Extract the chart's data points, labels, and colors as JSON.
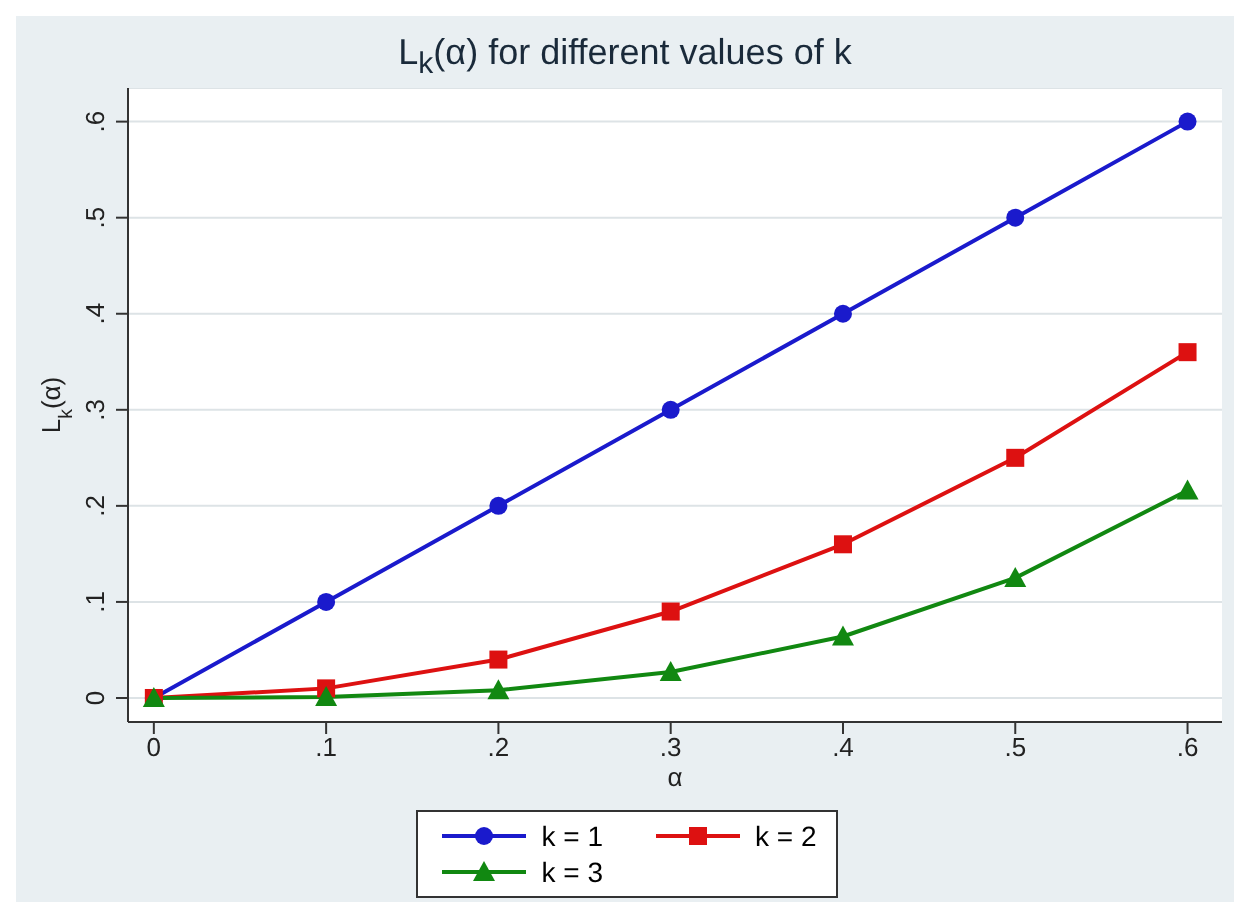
{
  "chart_data": {
    "type": "line",
    "title": "L$_{k}$(α) for different values of k",
    "xlabel": "α",
    "ylabel": "L$_{k}$(α)",
    "x": [
      0,
      0.1,
      0.2,
      0.3,
      0.4,
      0.5,
      0.6
    ],
    "series": [
      {
        "name": "k = 1",
        "color": "#1a1acc",
        "marker": "circle",
        "values": [
          0,
          0.1,
          0.2,
          0.3,
          0.4,
          0.5,
          0.6
        ]
      },
      {
        "name": "k = 2",
        "color": "#dd1111",
        "marker": "square",
        "values": [
          0,
          0.01,
          0.04,
          0.09,
          0.16,
          0.25,
          0.36
        ]
      },
      {
        "name": "k = 3",
        "color": "#118811",
        "marker": "triangle",
        "values": [
          0,
          0.001,
          0.008,
          0.027,
          0.064,
          0.125,
          0.216
        ]
      }
    ],
    "xlim": [
      -0.015,
      0.62
    ],
    "ylim": [
      -0.025,
      0.635
    ],
    "xticks": [
      0,
      {
        "value": 0.1,
        "label": ".1"
      },
      {
        "value": 0.2,
        "label": ".2"
      },
      {
        "value": 0.3,
        "label": ".3"
      },
      {
        "value": 0.4,
        "label": ".4"
      },
      {
        "value": 0.5,
        "label": ".5"
      },
      {
        "value": 0.6,
        "label": ".6"
      }
    ],
    "yticks": [
      0,
      {
        "value": 0.1,
        "label": ".1"
      },
      {
        "value": 0.2,
        "label": ".2"
      },
      {
        "value": 0.3,
        "label": ".3"
      },
      {
        "value": 0.4,
        "label": ".4"
      },
      {
        "value": 0.5,
        "label": ".5"
      },
      {
        "value": 0.6,
        "label": ".6"
      }
    ],
    "grid": "y",
    "legend": "bottom",
    "line_style": "solid"
  }
}
